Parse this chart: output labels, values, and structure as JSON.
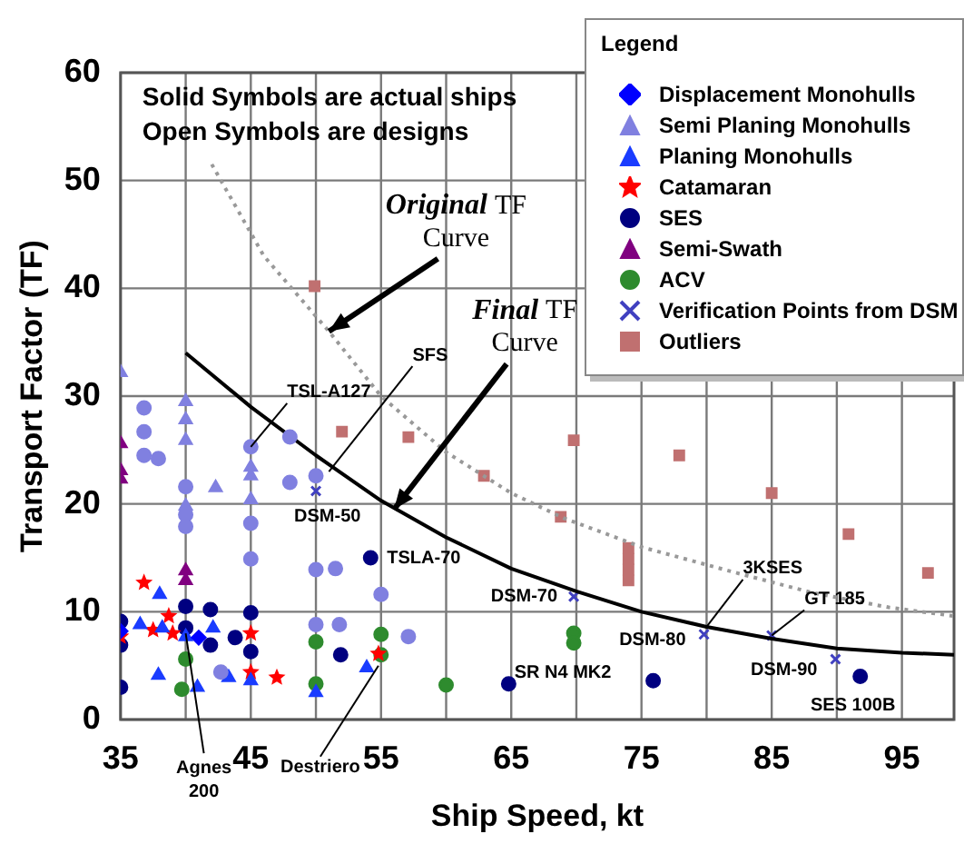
{
  "chart_data": {
    "type": "scatter",
    "xlabel": "Ship Speed, kt",
    "ylabel": "Transport Factor (TF)",
    "legend_title": "Legend",
    "legend": "top right",
    "grid": true,
    "xlim": [
      35,
      99
    ],
    "ylim": [
      0,
      60
    ],
    "xticks": [
      35,
      {
        "value": 40,
        "label": null
      },
      45,
      {
        "value": 50,
        "label": null
      },
      55,
      {
        "value": 60,
        "label": null
      },
      65,
      {
        "value": 70,
        "label": null
      },
      75,
      {
        "value": 80,
        "label": null
      },
      85,
      {
        "value": 90,
        "label": null
      },
      95
    ],
    "yticks": [
      0,
      10,
      20,
      30,
      40,
      50,
      60
    ],
    "series": [
      {
        "color": "#8080e0",
        "marker": "circle",
        "x": [
          36.8,
          36.8,
          36.8,
          37.9,
          40,
          40,
          40,
          45,
          45,
          45,
          48,
          48,
          50,
          50,
          51.5,
          55,
          50,
          51.8,
          57.1,
          42.7
        ],
        "values": [
          28.9,
          26.7,
          24.5,
          24.2,
          21.6,
          19,
          17.9,
          25.3,
          18.2,
          14.9,
          26.2,
          22,
          22.6,
          13.9,
          14,
          11.6,
          8.8,
          8.8,
          7.7,
          4.4
        ]
      },
      {
        "type": "line",
        "color": "#999999",
        "marker": "none",
        "line_style": "dotted",
        "x": [
          42,
          46,
          51,
          55,
          60,
          65,
          69,
          75,
          82,
          88,
          94,
          99
        ],
        "values": [
          51.5,
          43,
          36,
          30,
          24.8,
          21,
          18.7,
          16,
          13.7,
          11.8,
          10.4,
          9.6
        ]
      },
      {
        "type": "line",
        "color": "#000000",
        "marker": "none",
        "line_style": "solid",
        "x": [
          40,
          45,
          50,
          55,
          60,
          65,
          70,
          75,
          80,
          85,
          90,
          95,
          99
        ],
        "values": [
          34,
          29,
          24.5,
          20.3,
          16.9,
          14,
          11.9,
          10,
          8.6,
          7.5,
          6.6,
          6.2,
          6.0
        ]
      },
      {
        "name": "Displacement Monohulls",
        "color": "#0000ff",
        "marker": "diamond",
        "x": [
          35,
          41
        ],
        "values": [
          8.2,
          7.6
        ]
      },
      {
        "name": "Semi Planing Monohulls",
        "color": "#8080e0",
        "marker": "triangle",
        "x": [
          35,
          40,
          40,
          40,
          40,
          42.3,
          45,
          45,
          45
        ],
        "values": [
          32.2,
          29.5,
          27.8,
          25.9,
          19.8,
          21.5,
          23.4,
          22.6,
          20.4
        ]
      },
      {
        "name": "Planing Monohulls",
        "color": "#1a3cff",
        "marker": "triangle",
        "x": [
          38,
          36.5,
          38.2,
          42.1,
          37.9,
          40.9,
          43.3,
          45,
          50,
          53.9,
          40
        ],
        "values": [
          11.6,
          8.8,
          8.5,
          8.5,
          4.1,
          3,
          3.9,
          3.6,
          2.5,
          4.8,
          7.7
        ]
      },
      {
        "name": "Catamaran",
        "color": "#ff0000",
        "marker": "star",
        "x": [
          36.8,
          35,
          38.7,
          37.5,
          39,
          45,
          45,
          47,
          54.8
        ],
        "values": [
          12.7,
          7.7,
          9.6,
          8.3,
          8,
          8,
          4.4,
          3.9,
          6.1
        ]
      },
      {
        "name": "SES",
        "color": "#000080",
        "marker": "circle",
        "x": [
          35,
          35,
          35,
          40,
          40,
          41.9,
          41.9,
          43.8,
          45,
          45,
          51.9,
          54.2,
          64.8,
          75.9,
          91.8
        ],
        "values": [
          9.1,
          6.9,
          3,
          10.5,
          8.5,
          10.2,
          6.9,
          7.6,
          9.9,
          6.3,
          6,
          15,
          3.3,
          3.6,
          4
        ]
      },
      {
        "name": "Semi-Swath",
        "color": "#800080",
        "marker": "triangle",
        "x": [
          35,
          35,
          35,
          40,
          40
        ],
        "values": [
          25.6,
          23.1,
          22.3,
          13.8,
          12.9
        ]
      },
      {
        "name": "ACV",
        "color": "#2e8b2e",
        "marker": "circle",
        "x": [
          40,
          39.7,
          50,
          50,
          55,
          55,
          60,
          69.8,
          69.8
        ],
        "values": [
          5.6,
          2.8,
          7.2,
          3.3,
          7.9,
          6,
          3.2,
          8,
          7.1
        ]
      },
      {
        "name": "Verification Points from DSM",
        "color": "#4040c0",
        "marker": "cross",
        "x": [
          50,
          69.8,
          79.8,
          85,
          89.9
        ],
        "values": [
          21.2,
          11.4,
          7.9,
          7.8,
          5.6
        ]
      },
      {
        "name": "Outliers",
        "color": "#c07070",
        "marker": "square",
        "x": [
          49.9,
          52,
          57.1,
          62.9,
          69.8,
          68.8,
          77.9,
          74,
          74,
          74,
          74,
          85,
          90.9,
          97
        ],
        "values": [
          40.2,
          26.7,
          26.2,
          22.6,
          25.9,
          18.8,
          24.5,
          15.9,
          14.9,
          13.9,
          12.9,
          21,
          17.2,
          13.6
        ]
      }
    ],
    "annotations": [
      "Solid Symbols are actual ships",
      "Open Symbols are designs",
      {
        "text": "Original TF Curve",
        "x": 51,
        "y": 36
      },
      {
        "text": "Final TF Curve",
        "x": 56,
        "y": 19.5
      },
      {
        "text": "TSL-A127",
        "x": 45,
        "y": 25.3
      },
      {
        "text": "SFS",
        "x": 51,
        "y": 23
      },
      {
        "text": "DSM-50",
        "x": 50,
        "y": 21.2
      },
      {
        "text": "TSLA-70",
        "x": 54.2,
        "y": 15
      },
      {
        "text": "DSM-70",
        "x": 69.8,
        "y": 11.4
      },
      {
        "text": "DSM-80",
        "x": 79.8,
        "y": 7.9
      },
      {
        "text": "3KSES",
        "x": 80,
        "y": 8.6
      },
      {
        "text": "GT 185",
        "x": 85,
        "y": 7.8
      },
      {
        "text": "DSM-90",
        "x": 89.9,
        "y": 5.6
      },
      {
        "text": "SES 100B",
        "x": 91.8,
        "y": 4
      },
      {
        "text": "SR N4 MK2",
        "x": 69.8,
        "y": 7
      },
      {
        "text": "Agnes 200",
        "x": 40,
        "y": 8
      },
      {
        "text": "Destriero",
        "x": 54.8,
        "y": 5
      }
    ]
  }
}
